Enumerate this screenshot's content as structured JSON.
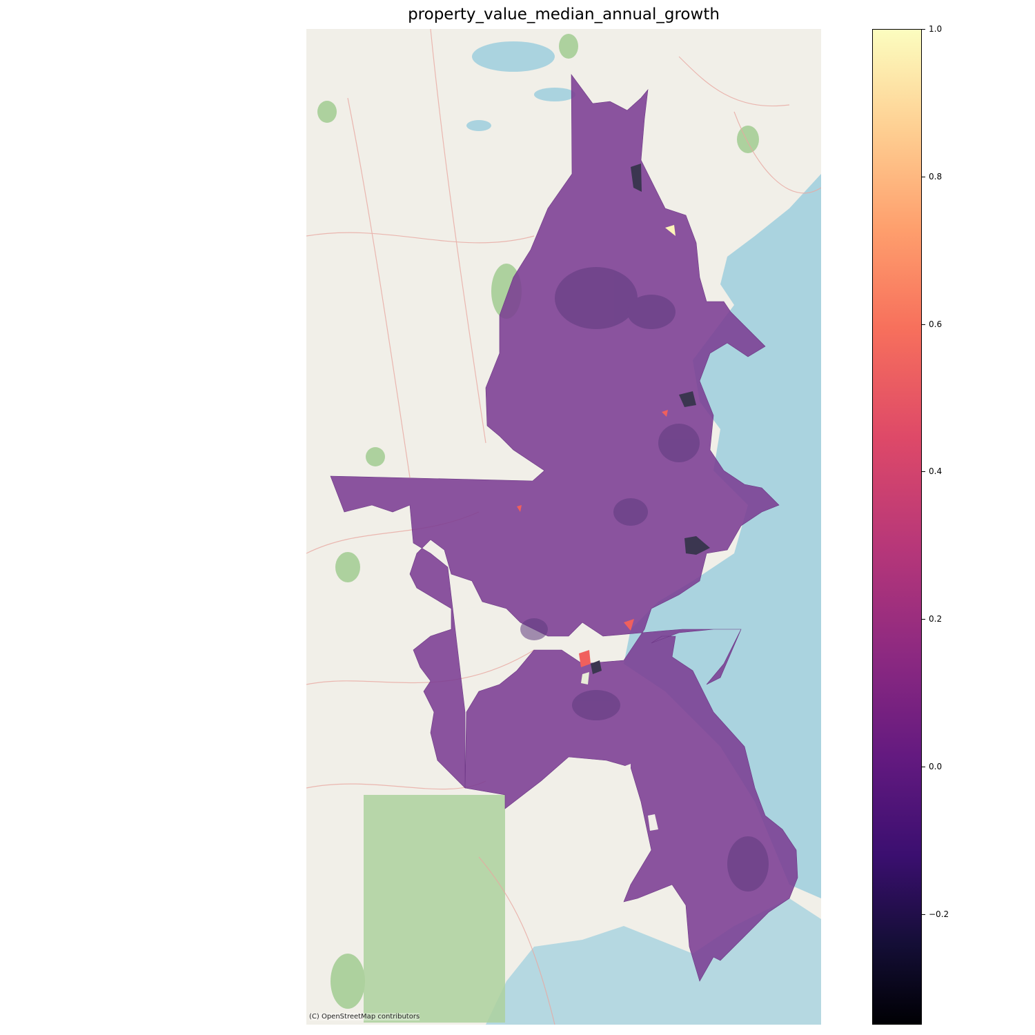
{
  "map": {
    "title": "property_value_median_annual_growth",
    "attribution": "(C) OpenStreetMap contributors",
    "basemap": "OpenStreetMap",
    "colormap": "magma",
    "colors": {
      "region_fill": "#7b3e93",
      "region_dark": "#5e3a7e",
      "water": "#aad3df",
      "land": "#f1efe8",
      "forest": "#add19e",
      "outlier_high": "#fcf5b8",
      "outlier_mid": "#f0605d",
      "outlier_low": "#3b3650"
    }
  },
  "colorbar": {
    "min": -0.35,
    "max": 1.0,
    "ticks": [
      {
        "value": 1.0,
        "label": "1.0"
      },
      {
        "value": 0.8,
        "label": "0.8"
      },
      {
        "value": 0.6,
        "label": "0.6"
      },
      {
        "value": 0.4,
        "label": "0.4"
      },
      {
        "value": 0.2,
        "label": "0.2"
      },
      {
        "value": 0.0,
        "label": "0.0"
      },
      {
        "value": -0.2,
        "label": "−0.2"
      }
    ]
  }
}
